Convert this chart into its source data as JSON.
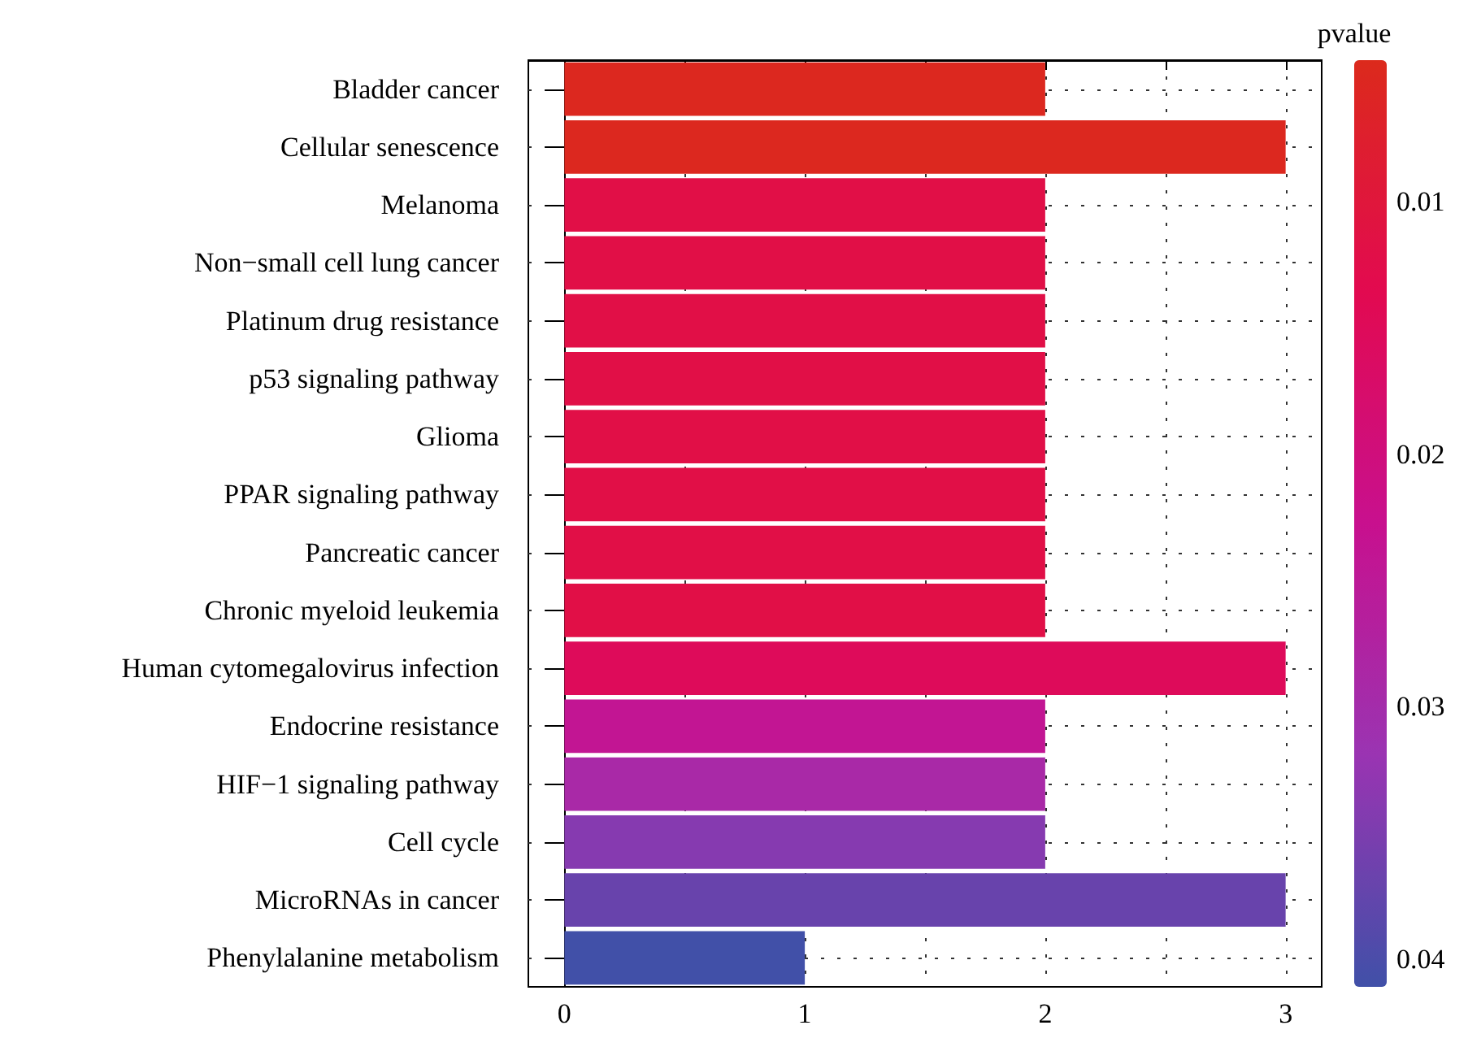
{
  "chart_data": {
    "type": "bar",
    "orientation": "horizontal",
    "categories": [
      "Bladder cancer",
      "Cellular senescence",
      "Melanoma",
      "Non−small cell lung cancer",
      "Platinum drug resistance",
      "p53 signaling pathway",
      "Glioma",
      "PPAR signaling pathway",
      "Pancreatic cancer",
      "Chronic myeloid leukemia",
      "Human cytomegalovirus infection",
      "Endocrine resistance",
      "HIF−1 signaling pathway",
      "Cell cycle",
      "MicroRNAs in cancer",
      "Phenylalanine metabolism"
    ],
    "values": [
      2,
      3,
      2,
      2,
      2,
      2,
      2,
      2,
      2,
      2,
      3,
      2,
      2,
      2,
      3,
      1
    ],
    "cvalues": [
      0.005,
      0.005,
      0.012,
      0.012,
      0.012,
      0.012,
      0.012,
      0.012,
      0.012,
      0.012,
      0.015,
      0.024,
      0.029,
      0.034,
      0.037,
      0.041
    ],
    "xlim": [
      -0.15,
      3.15
    ],
    "xticks": [
      0,
      {
        "value": 0.5,
        "label": null
      },
      1,
      {
        "value": 1.5,
        "label": null
      },
      2,
      {
        "value": 2.5,
        "label": null
      },
      3
    ],
    "clabel": "pvalue",
    "clim": [
      0.0044,
      0.0411
    ],
    "cticks": [
      0.01,
      0.02,
      0.03,
      0.04
    ],
    "grid": true
  }
}
